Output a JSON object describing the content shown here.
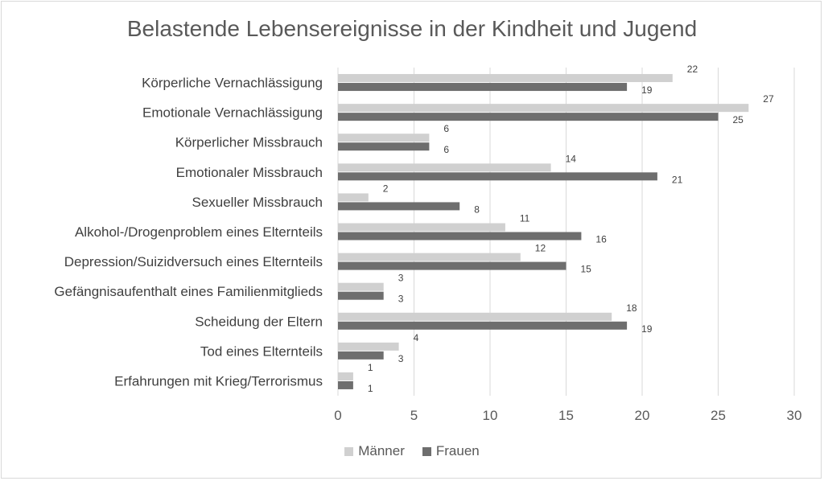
{
  "chart_data": {
    "type": "bar",
    "orientation": "horizontal",
    "title": "Belastende Lebensereignisse in der Kindheit und Jugend",
    "categories": [
      "Körperliche Vernachlässigung",
      "Emotionale Vernachlässigung",
      "Körperlicher Missbrauch",
      "Emotionaler Missbrauch",
      "Sexueller Missbrauch",
      "Alkohol-/Drogenproblem eines Elternteils",
      "Depression/Suizidversuch eines Elternteils",
      "Gefängnisaufenthalt eines Familienmitglieds",
      "Scheidung der Eltern",
      "Tod eines Elternteils",
      "Erfahrungen mit Krieg/Terrorismus"
    ],
    "series": [
      {
        "name": "Männer",
        "color": "#d0d0d0",
        "values": [
          22,
          27,
          6,
          14,
          2,
          11,
          12,
          3,
          18,
          4,
          1
        ]
      },
      {
        "name": "Frauen",
        "color": "#6e6e6e",
        "values": [
          19,
          25,
          6,
          21,
          8,
          16,
          15,
          3,
          19,
          3,
          1
        ]
      }
    ],
    "xlim": [
      0,
      30
    ],
    "xticks": [
      0,
      5,
      10,
      15,
      20,
      25,
      30
    ],
    "grid": true,
    "legend": "bottom"
  }
}
